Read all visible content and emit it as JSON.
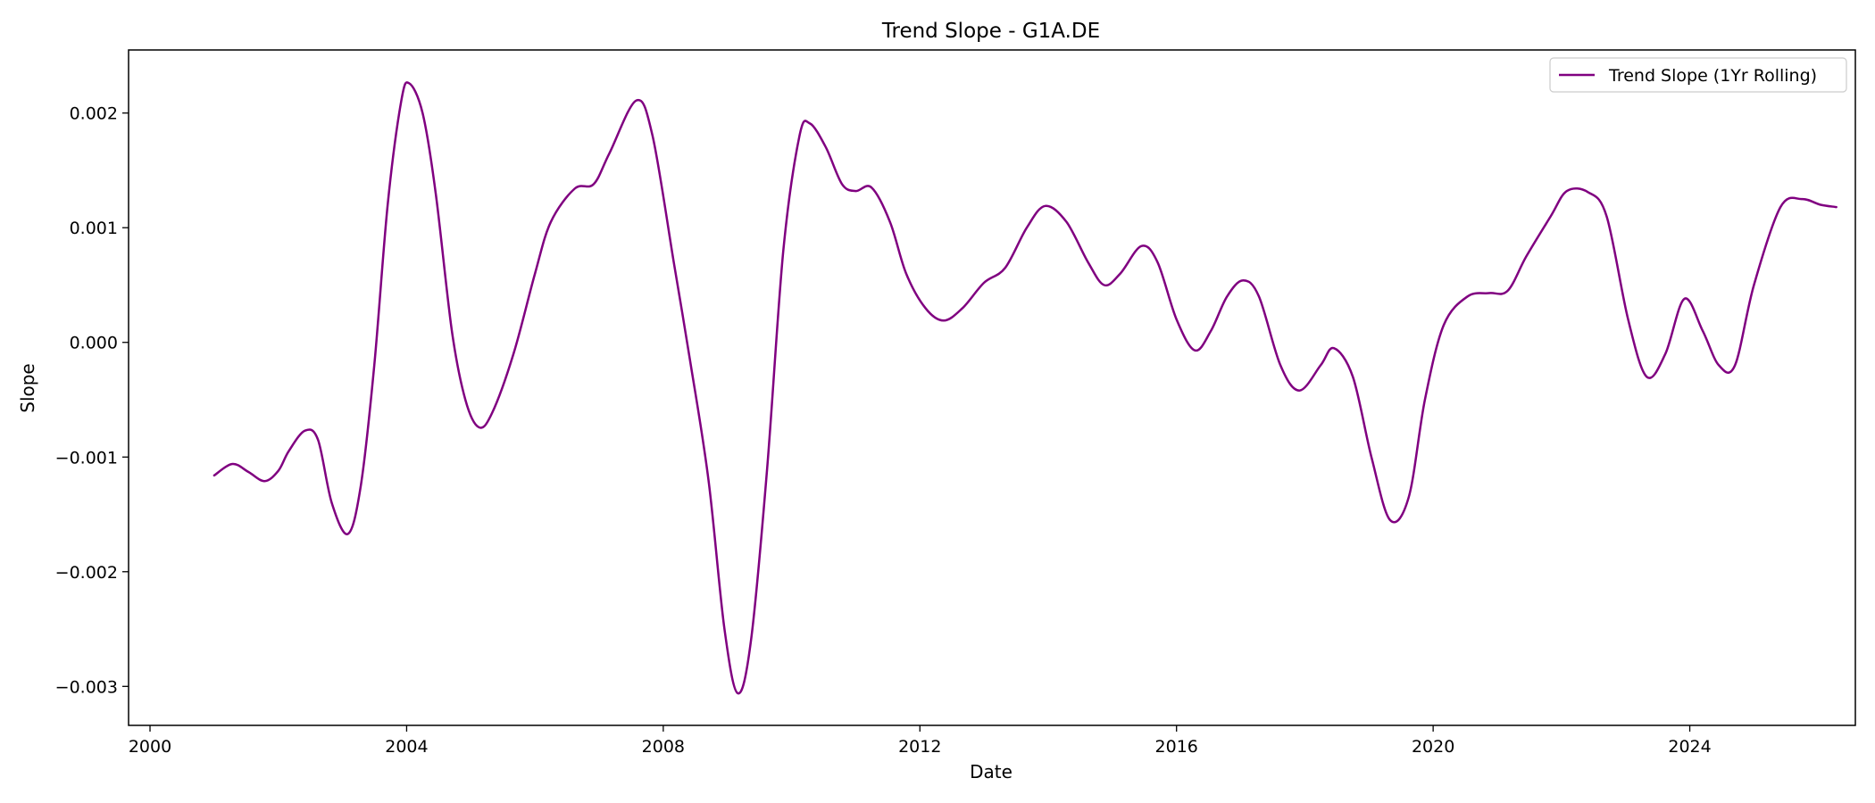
{
  "chart_data": {
    "type": "line",
    "title": "Trend Slope - G1A.DE",
    "xlabel": "Date",
    "ylabel": "Slope",
    "x_axis_type": "date",
    "xlim": [
      "1999-09-01",
      "2026-08-01"
    ],
    "ylim": [
      -0.00334,
      0.00255
    ],
    "x_ticks": [
      {
        "value": "2000-01-01",
        "label": "2000"
      },
      {
        "value": "2004-01-01",
        "label": "2004"
      },
      {
        "value": "2008-01-01",
        "label": "2008"
      },
      {
        "value": "2012-01-01",
        "label": "2012"
      },
      {
        "value": "2016-01-01",
        "label": "2016"
      },
      {
        "value": "2020-01-01",
        "label": "2020"
      },
      {
        "value": "2024-01-01",
        "label": "2024"
      }
    ],
    "y_ticks": [
      {
        "value": 0.002,
        "label": "0.002"
      },
      {
        "value": 0.001,
        "label": "0.001"
      },
      {
        "value": 0.0,
        "label": "0.000"
      },
      {
        "value": -0.001,
        "label": "−0.001"
      },
      {
        "value": -0.002,
        "label": "−0.002"
      },
      {
        "value": -0.003,
        "label": "−0.003"
      }
    ],
    "grid": false,
    "legend_position": "top-right",
    "series": [
      {
        "name": "Trend Slope (1Yr Rolling)",
        "color": "#800080",
        "points": [
          {
            "x": "2001-01-01",
            "y": -0.00116
          },
          {
            "x": "2001-04-15",
            "y": -0.00106
          },
          {
            "x": "2001-07-15",
            "y": -0.00113
          },
          {
            "x": "2001-10-15",
            "y": -0.00121
          },
          {
            "x": "2002-01-01",
            "y": -0.00112
          },
          {
            "x": "2002-03-01",
            "y": -0.00095
          },
          {
            "x": "2002-06-01",
            "y": -0.00077
          },
          {
            "x": "2002-08-15",
            "y": -0.00085
          },
          {
            "x": "2002-11-01",
            "y": -0.0014
          },
          {
            "x": "2003-02-01",
            "y": -0.00167
          },
          {
            "x": "2003-04-15",
            "y": -0.00125
          },
          {
            "x": "2003-07-01",
            "y": -0.0002
          },
          {
            "x": "2003-09-15",
            "y": 0.0012
          },
          {
            "x": "2003-12-01",
            "y": 0.0021
          },
          {
            "x": "2004-01-15",
            "y": 0.00226
          },
          {
            "x": "2004-04-01",
            "y": 0.002
          },
          {
            "x": "2004-06-15",
            "y": 0.0013
          },
          {
            "x": "2004-09-15",
            "y": 0.0001
          },
          {
            "x": "2004-12-01",
            "y": -0.0005
          },
          {
            "x": "2005-02-15",
            "y": -0.00074
          },
          {
            "x": "2005-05-01",
            "y": -0.00062
          },
          {
            "x": "2005-09-01",
            "y": -0.0001
          },
          {
            "x": "2006-01-01",
            "y": 0.0006
          },
          {
            "x": "2006-04-01",
            "y": 0.00105
          },
          {
            "x": "2006-08-15",
            "y": 0.00134
          },
          {
            "x": "2006-12-01",
            "y": 0.00138
          },
          {
            "x": "2007-03-01",
            "y": 0.00165
          },
          {
            "x": "2007-08-01",
            "y": 0.00211
          },
          {
            "x": "2007-11-01",
            "y": 0.0018
          },
          {
            "x": "2008-03-01",
            "y": 0.0007
          },
          {
            "x": "2008-06-01",
            "y": -0.00015
          },
          {
            "x": "2008-09-15",
            "y": -0.0012
          },
          {
            "x": "2008-12-15",
            "y": -0.0025
          },
          {
            "x": "2009-03-01",
            "y": -0.00306
          },
          {
            "x": "2009-05-15",
            "y": -0.0026
          },
          {
            "x": "2009-08-15",
            "y": -0.0011
          },
          {
            "x": "2009-11-15",
            "y": 0.0008
          },
          {
            "x": "2010-02-15",
            "y": 0.0018
          },
          {
            "x": "2010-04-15",
            "y": 0.00191
          },
          {
            "x": "2010-07-15",
            "y": 0.0017
          },
          {
            "x": "2010-10-15",
            "y": 0.00138
          },
          {
            "x": "2011-01-01",
            "y": 0.00132
          },
          {
            "x": "2011-04-01",
            "y": 0.00135
          },
          {
            "x": "2011-07-15",
            "y": 0.00105
          },
          {
            "x": "2011-10-15",
            "y": 0.0006
          },
          {
            "x": "2012-02-01",
            "y": 0.0003
          },
          {
            "x": "2012-05-15",
            "y": 0.00019
          },
          {
            "x": "2012-09-01",
            "y": 0.0003
          },
          {
            "x": "2013-01-01",
            "y": 0.00052
          },
          {
            "x": "2013-05-01",
            "y": 0.00065
          },
          {
            "x": "2013-09-01",
            "y": 0.001
          },
          {
            "x": "2013-12-15",
            "y": 0.00119
          },
          {
            "x": "2014-04-15",
            "y": 0.00105
          },
          {
            "x": "2014-08-15",
            "y": 0.0007
          },
          {
            "x": "2014-11-15",
            "y": 0.0005
          },
          {
            "x": "2015-02-15",
            "y": 0.0006
          },
          {
            "x": "2015-06-15",
            "y": 0.00084
          },
          {
            "x": "2015-09-15",
            "y": 0.0007
          },
          {
            "x": "2016-01-01",
            "y": 0.0002
          },
          {
            "x": "2016-04-15",
            "y": -7e-05
          },
          {
            "x": "2016-07-15",
            "y": 0.0001
          },
          {
            "x": "2016-10-15",
            "y": 0.0004
          },
          {
            "x": "2017-01-15",
            "y": 0.00054
          },
          {
            "x": "2017-04-15",
            "y": 0.0004
          },
          {
            "x": "2017-08-15",
            "y": -0.0002
          },
          {
            "x": "2017-12-01",
            "y": -0.00042
          },
          {
            "x": "2018-04-01",
            "y": -0.0002
          },
          {
            "x": "2018-06-15",
            "y": -5e-05
          },
          {
            "x": "2018-10-01",
            "y": -0.0003
          },
          {
            "x": "2019-01-15",
            "y": -0.001
          },
          {
            "x": "2019-05-01",
            "y": -0.00155
          },
          {
            "x": "2019-08-15",
            "y": -0.00135
          },
          {
            "x": "2019-11-15",
            "y": -0.0005
          },
          {
            "x": "2020-03-01",
            "y": 0.00015
          },
          {
            "x": "2020-07-15",
            "y": 0.0004
          },
          {
            "x": "2020-11-15",
            "y": 0.00043
          },
          {
            "x": "2021-03-01",
            "y": 0.00045
          },
          {
            "x": "2021-06-15",
            "y": 0.00075
          },
          {
            "x": "2021-11-01",
            "y": 0.0011
          },
          {
            "x": "2022-02-01",
            "y": 0.00132
          },
          {
            "x": "2022-06-01",
            "y": 0.00131
          },
          {
            "x": "2022-09-15",
            "y": 0.0011
          },
          {
            "x": "2023-01-15",
            "y": 0.0002
          },
          {
            "x": "2023-05-01",
            "y": -0.0003
          },
          {
            "x": "2023-08-15",
            "y": -0.0001
          },
          {
            "x": "2023-12-01",
            "y": 0.00038
          },
          {
            "x": "2024-03-15",
            "y": 0.0001
          },
          {
            "x": "2024-06-15",
            "y": -0.0002
          },
          {
            "x": "2024-09-15",
            "y": -0.0002
          },
          {
            "x": "2025-01-01",
            "y": 0.0005
          },
          {
            "x": "2025-06-01",
            "y": 0.00118
          },
          {
            "x": "2025-10-01",
            "y": 0.00125
          },
          {
            "x": "2026-01-15",
            "y": 0.0012
          },
          {
            "x": "2026-04-15",
            "y": 0.00118
          }
        ]
      }
    ]
  }
}
